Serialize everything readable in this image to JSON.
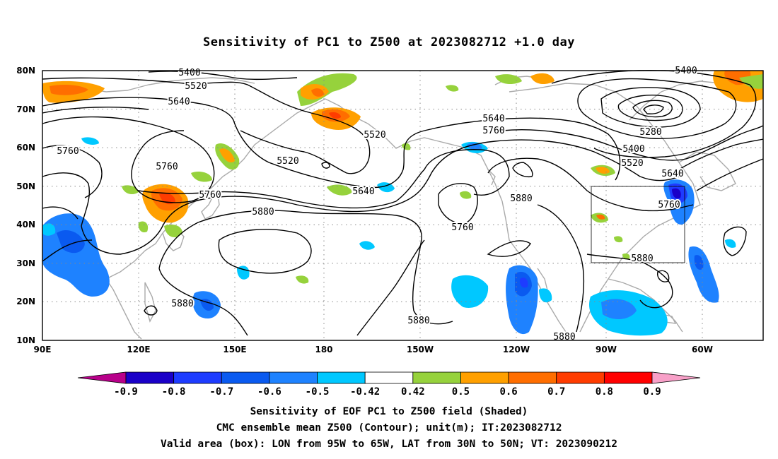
{
  "title": "Sensitivity of PC1 to Z500 at 2023082712 +1.0 day",
  "lat_labels": [
    "80N",
    "70N",
    "60N",
    "50N",
    "40N",
    "30N",
    "20N",
    "10N"
  ],
  "lon_labels": [
    "90E",
    "120E",
    "150E",
    "180",
    "150W",
    "120W",
    "90W",
    "60W"
  ],
  "contour_labels": [
    "5400",
    "5520",
    "5640",
    "5760",
    "5520",
    "5520",
    "5640",
    "5760",
    "5760",
    "5880",
    "5640",
    "5760",
    "5760",
    "5880",
    "5880",
    "5880",
    "5880",
    "5400",
    "5280",
    "5400",
    "5520",
    "5640",
    "5760",
    "5880"
  ],
  "colorbar": {
    "tick_labels": [
      "-0.9",
      "-0.8",
      "-0.7",
      "-0.6",
      "-0.5",
      "-0.42",
      "0.42",
      "0.5",
      "0.6",
      "0.7",
      "0.8",
      "0.9"
    ],
    "colors": [
      "#b8008a",
      "#1a00c8",
      "#1e3cff",
      "#0a5af0",
      "#1e82ff",
      "#00c8ff",
      "#ffffff",
      "#96d23c",
      "#ffa000",
      "#ff6e00",
      "#ff3c00",
      "#ff0000",
      "#f8a0c8"
    ]
  },
  "valid_box": "LON from 95W to 65W, LAT from 30N to 50N",
  "footer": {
    "line1": "Sensitivity of EOF PC1 to Z500 field (Shaded)",
    "line2": "CMC ensemble mean Z500 (Contour); unit(m); IT:2023082712",
    "line3": "Valid area (box): LON from 95W to 65W, LAT from 30N to 50N; VT: 2023090212"
  }
}
